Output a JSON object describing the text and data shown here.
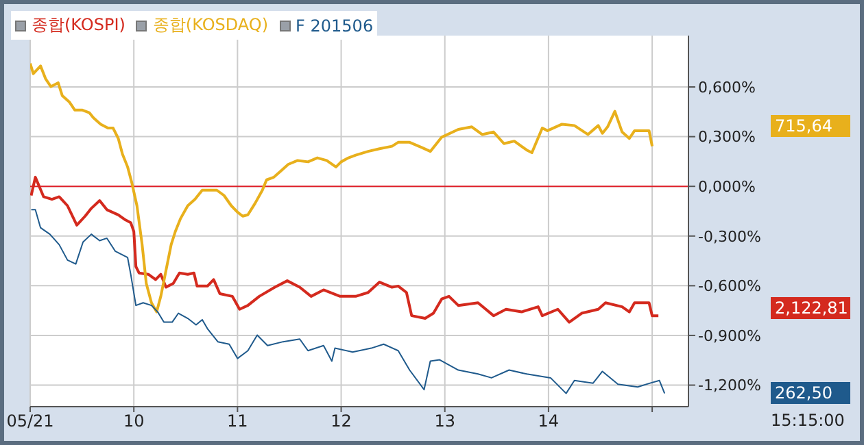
{
  "chart_data": {
    "type": "line",
    "legend": "top left",
    "grid": true,
    "marker": "none",
    "line_style": "solid",
    "xlim": [
      9,
      15.35
    ],
    "xticks": [
      {
        "value": 9,
        "label": "05/21"
      },
      10,
      11,
      12,
      13,
      14,
      {
        "value": 15,
        "label": null
      }
    ],
    "ylim": [
      -1.33,
      0.91
    ],
    "yticks": [
      {
        "value": 0.6,
        "label": "0,600%"
      },
      {
        "value": 0.3,
        "label": "0,300%"
      },
      {
        "value": 0,
        "label": "0,000%"
      },
      {
        "value": -0.3,
        "label": "-0,300%"
      },
      {
        "value": -0.6,
        "label": "-0,600%"
      },
      {
        "value": -0.9,
        "label": "-0,900%"
      },
      {
        "value": -1.2,
        "label": "-1,200%"
      }
    ],
    "ref_lines": [
      {
        "axis": "y",
        "value": 0,
        "color": "#e0202a"
      }
    ],
    "annotations": [
      "2,122,81",
      "715,64",
      "262,50",
      "15:15:00"
    ],
    "series": [
      {
        "name": "종합(KOSPI)",
        "color": "#d42a1e",
        "x": [
          9.01,
          9.05,
          9.13,
          9.21,
          9.28,
          9.36,
          9.45,
          9.53,
          9.59,
          9.67,
          9.74,
          9.85,
          9.92,
          9.97,
          10.0,
          10.02,
          10.05,
          10.14,
          10.21,
          10.26,
          10.31,
          10.38,
          10.44,
          10.52,
          10.58,
          10.61,
          10.71,
          10.77,
          10.83,
          10.95,
          11.02,
          11.1,
          11.21,
          11.36,
          11.48,
          11.6,
          11.71,
          11.83,
          11.99,
          12.14,
          12.26,
          12.37,
          12.49,
          12.55,
          12.63,
          12.68,
          12.81,
          12.89,
          12.97,
          13.04,
          13.13,
          13.32,
          13.47,
          13.59,
          13.74,
          13.9,
          13.94,
          14.09,
          14.2,
          14.32,
          14.48,
          14.55,
          14.71,
          14.78,
          14.83,
          14.97,
          15.0,
          15.06
        ],
        "values": [
          -0.055,
          0.055,
          -0.063,
          -0.078,
          -0.063,
          -0.117,
          -0.234,
          -0.18,
          -0.133,
          -0.086,
          -0.141,
          -0.172,
          -0.203,
          -0.219,
          -0.273,
          -0.484,
          -0.523,
          -0.531,
          -0.563,
          -0.531,
          -0.609,
          -0.586,
          -0.523,
          -0.531,
          -0.523,
          -0.602,
          -0.602,
          -0.563,
          -0.648,
          -0.664,
          -0.742,
          -0.719,
          -0.664,
          -0.609,
          -0.57,
          -0.609,
          -0.664,
          -0.625,
          -0.664,
          -0.664,
          -0.641,
          -0.578,
          -0.609,
          -0.602,
          -0.641,
          -0.781,
          -0.797,
          -0.766,
          -0.68,
          -0.664,
          -0.719,
          -0.703,
          -0.781,
          -0.742,
          -0.758,
          -0.727,
          -0.781,
          -0.742,
          -0.82,
          -0.766,
          -0.742,
          -0.703,
          -0.727,
          -0.758,
          -0.703,
          -0.703,
          -0.781,
          -0.781
        ]
      },
      {
        "name": "종합(KOSDAQ)",
        "color": "#e8b01c",
        "x": [
          9.0,
          9.03,
          9.1,
          9.15,
          9.2,
          9.27,
          9.31,
          9.38,
          9.43,
          9.5,
          9.57,
          9.61,
          9.68,
          9.75,
          9.8,
          9.85,
          9.89,
          9.94,
          9.98,
          10.03,
          10.08,
          10.12,
          10.17,
          10.22,
          10.26,
          10.31,
          10.36,
          10.4,
          10.45,
          10.52,
          10.59,
          10.66,
          10.73,
          10.8,
          10.87,
          10.94,
          11.0,
          11.05,
          11.1,
          11.17,
          11.24,
          11.28,
          11.35,
          11.42,
          11.49,
          11.58,
          11.68,
          11.77,
          11.86,
          11.95,
          12.0,
          12.07,
          12.14,
          12.26,
          12.37,
          12.49,
          12.55,
          12.66,
          12.78,
          12.86,
          12.97,
          13.13,
          13.26,
          13.36,
          13.47,
          13.57,
          13.67,
          13.79,
          13.84,
          13.94,
          13.99,
          14.13,
          14.25,
          14.38,
          14.48,
          14.52,
          14.57,
          14.64,
          14.71,
          14.78,
          14.83,
          14.97,
          15.0
        ],
        "values": [
          0.742,
          0.68,
          0.727,
          0.648,
          0.602,
          0.625,
          0.547,
          0.508,
          0.461,
          0.461,
          0.445,
          0.414,
          0.375,
          0.352,
          0.352,
          0.289,
          0.195,
          0.117,
          0.023,
          -0.117,
          -0.352,
          -0.586,
          -0.703,
          -0.758,
          -0.664,
          -0.508,
          -0.352,
          -0.273,
          -0.195,
          -0.117,
          -0.078,
          -0.023,
          -0.023,
          -0.023,
          -0.055,
          -0.117,
          -0.156,
          -0.18,
          -0.172,
          -0.102,
          -0.023,
          0.039,
          0.055,
          0.094,
          0.133,
          0.156,
          0.148,
          0.172,
          0.156,
          0.117,
          0.148,
          0.172,
          0.188,
          0.211,
          0.227,
          0.242,
          0.266,
          0.266,
          0.234,
          0.211,
          0.297,
          0.344,
          0.359,
          0.313,
          0.328,
          0.258,
          0.273,
          0.219,
          0.203,
          0.352,
          0.336,
          0.375,
          0.367,
          0.313,
          0.367,
          0.32,
          0.359,
          0.453,
          0.328,
          0.289,
          0.336,
          0.336,
          0.242
        ]
      },
      {
        "name": "F 201506",
        "color": "#1f5a8c",
        "x": [
          9.01,
          9.05,
          9.1,
          9.19,
          9.28,
          9.36,
          9.44,
          9.51,
          9.59,
          9.67,
          9.74,
          9.82,
          9.94,
          9.97,
          10.02,
          10.09,
          10.17,
          10.23,
          10.29,
          10.37,
          10.43,
          10.52,
          10.6,
          10.66,
          10.71,
          10.81,
          10.92,
          11.0,
          11.1,
          11.19,
          11.29,
          11.44,
          11.6,
          11.68,
          11.83,
          11.91,
          11.94,
          12.11,
          12.29,
          12.41,
          12.55,
          12.66,
          12.8,
          12.86,
          12.95,
          13.13,
          13.32,
          13.45,
          13.62,
          13.79,
          14.02,
          14.17,
          14.25,
          14.43,
          14.52,
          14.67,
          14.86,
          14.98,
          15.07,
          15.12
        ],
        "values": [
          -0.141,
          -0.141,
          -0.25,
          -0.289,
          -0.352,
          -0.445,
          -0.469,
          -0.336,
          -0.289,
          -0.328,
          -0.313,
          -0.391,
          -0.43,
          -0.531,
          -0.719,
          -0.703,
          -0.719,
          -0.758,
          -0.82,
          -0.82,
          -0.766,
          -0.797,
          -0.836,
          -0.805,
          -0.859,
          -0.938,
          -0.953,
          -1.039,
          -0.992,
          -0.898,
          -0.961,
          -0.938,
          -0.922,
          -0.992,
          -0.961,
          -1.055,
          -0.977,
          -1.0,
          -0.977,
          -0.953,
          -0.992,
          -1.109,
          -1.227,
          -1.055,
          -1.047,
          -1.109,
          -1.133,
          -1.156,
          -1.109,
          -1.133,
          -1.156,
          -1.25,
          -1.172,
          -1.188,
          -1.117,
          -1.195,
          -1.211,
          -1.188,
          -1.172,
          -1.25
        ]
      }
    ]
  }
}
